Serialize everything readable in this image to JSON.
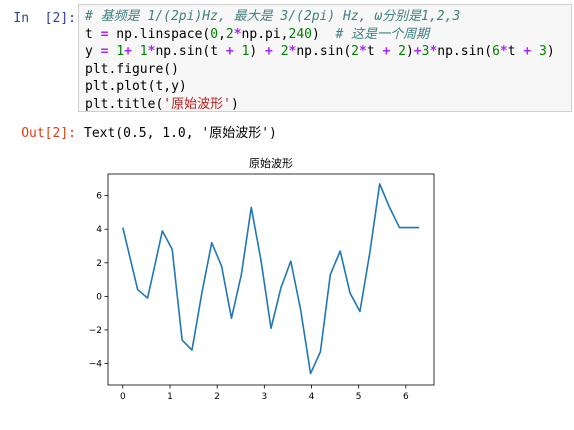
{
  "input_cell": {
    "prompt": "In  [2]:",
    "lines": [
      [
        {
          "t": "# 基频是 1/(2pi)Hz, 最大是 3/(2pi) Hz, ω分别是1,2,3",
          "c": "comment"
        }
      ],
      [
        {
          "t": "t ",
          "c": "plain"
        },
        {
          "t": "=",
          "c": "op"
        },
        {
          "t": " np.linspace(",
          "c": "plain"
        },
        {
          "t": "0",
          "c": "num"
        },
        {
          "t": ",",
          "c": "plain"
        },
        {
          "t": "2",
          "c": "num"
        },
        {
          "t": "*",
          "c": "op"
        },
        {
          "t": "np.pi,",
          "c": "plain"
        },
        {
          "t": "240",
          "c": "num"
        },
        {
          "t": ")  ",
          "c": "plain"
        },
        {
          "t": "# 这是一个周期",
          "c": "comment"
        }
      ],
      [
        {
          "t": "y ",
          "c": "plain"
        },
        {
          "t": "=",
          "c": "op"
        },
        {
          "t": " ",
          "c": "plain"
        },
        {
          "t": "1",
          "c": "num"
        },
        {
          "t": "+",
          "c": "op"
        },
        {
          "t": " ",
          "c": "plain"
        },
        {
          "t": "1",
          "c": "num"
        },
        {
          "t": "*",
          "c": "op"
        },
        {
          "t": "np.sin(t ",
          "c": "plain"
        },
        {
          "t": "+",
          "c": "op"
        },
        {
          "t": " ",
          "c": "plain"
        },
        {
          "t": "1",
          "c": "num"
        },
        {
          "t": ") ",
          "c": "plain"
        },
        {
          "t": "+",
          "c": "op"
        },
        {
          "t": " ",
          "c": "plain"
        },
        {
          "t": "2",
          "c": "num"
        },
        {
          "t": "*",
          "c": "op"
        },
        {
          "t": "np.sin(",
          "c": "plain"
        },
        {
          "t": "2",
          "c": "num"
        },
        {
          "t": "*",
          "c": "op"
        },
        {
          "t": "t ",
          "c": "plain"
        },
        {
          "t": "+",
          "c": "op"
        },
        {
          "t": " ",
          "c": "plain"
        },
        {
          "t": "2",
          "c": "num"
        },
        {
          "t": ")",
          "c": "plain"
        },
        {
          "t": "+",
          "c": "op"
        },
        {
          "t": "3",
          "c": "num"
        },
        {
          "t": "*",
          "c": "op"
        },
        {
          "t": "np.sin(",
          "c": "plain"
        },
        {
          "t": "6",
          "c": "num"
        },
        {
          "t": "*",
          "c": "op"
        },
        {
          "t": "t ",
          "c": "plain"
        },
        {
          "t": "+",
          "c": "op"
        },
        {
          "t": " ",
          "c": "plain"
        },
        {
          "t": "3",
          "c": "num"
        },
        {
          "t": ")",
          "c": "plain"
        }
      ],
      [
        {
          "t": "plt.figure()",
          "c": "plain"
        }
      ],
      [
        {
          "t": "plt.plot(t,y)",
          "c": "plain"
        }
      ],
      [
        {
          "t": "plt.title(",
          "c": "plain"
        },
        {
          "t": "'原始波形'",
          "c": "str"
        },
        {
          "t": ")",
          "c": "plain"
        }
      ]
    ]
  },
  "output_cell": {
    "prompt": "Out[2]:",
    "text": "Text(0.5, 1.0, '原始波形')"
  },
  "chart_data": {
    "type": "line",
    "title": "原始波形",
    "xlabel": "",
    "ylabel": "",
    "xlim": [
      -0.314,
      6.597
    ],
    "ylim": [
      -5.28,
      7.29
    ],
    "x_ticks": [
      0,
      1,
      2,
      3,
      4,
      5,
      6
    ],
    "y_ticks": [
      -4,
      -2,
      0,
      2,
      4,
      6
    ],
    "grid": false,
    "color": "#1f77b4",
    "series": [
      {
        "x": [
          0.0,
          0.315,
          0.524,
          0.628,
          0.838,
          1.047,
          1.257,
          1.466,
          1.676,
          1.885,
          2.094,
          2.304,
          2.513,
          2.723,
          2.932,
          3.142,
          3.351,
          3.561,
          3.77,
          3.98,
          4.189,
          4.399,
          4.608,
          4.817,
          5.027,
          5.236,
          5.445,
          5.655,
          5.864,
          6.074,
          6.283
        ],
        "y": [
          4.1,
          0.4,
          -0.1,
          1.2,
          3.9,
          2.8,
          -2.6,
          -3.2,
          0.2,
          3.2,
          1.8,
          -1.3,
          1.3,
          5.3,
          2.1,
          -1.9,
          0.5,
          2.1,
          -0.8,
          -4.6,
          -3.3,
          1.3,
          2.7,
          0.2,
          -0.9,
          2.6,
          6.7,
          5.3,
          4.1,
          4.1,
          4.1
        ]
      }
    ]
  }
}
